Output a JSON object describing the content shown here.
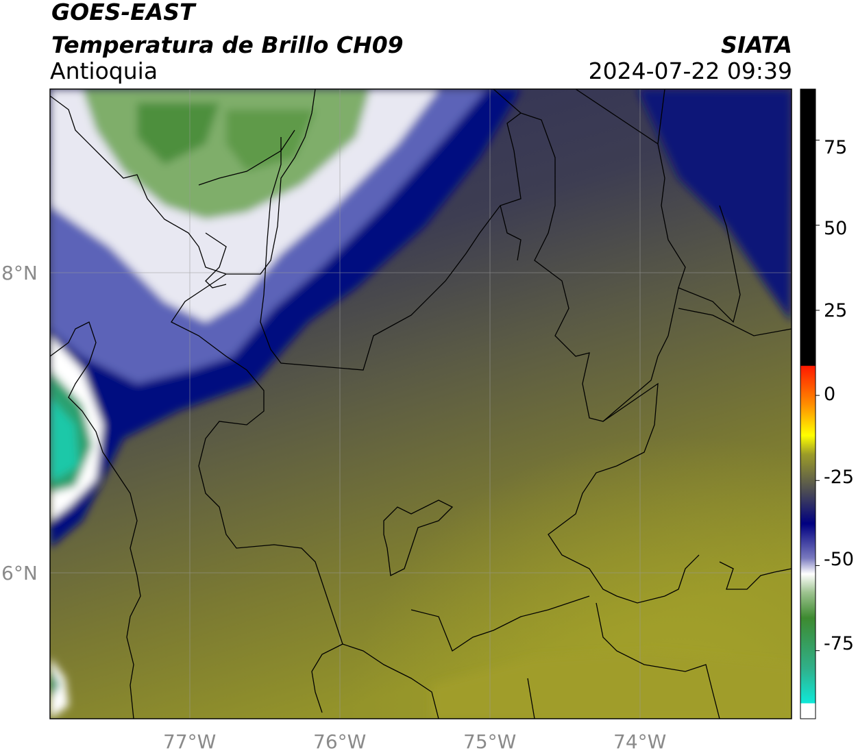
{
  "header": {
    "satellite": "GOES-EAST",
    "product": "Temperatura de Brillo CH09",
    "region": "Antioquia",
    "agency": "SIATA",
    "datetime": "2024-07-22 09:39"
  },
  "map": {
    "longitude_labels": [
      "77°W",
      "76°W",
      "75°W",
      "74°W"
    ],
    "latitude_labels": [
      "8°N",
      "6°N"
    ],
    "lon_range": [
      -77.95,
      -73.0
    ],
    "lat_range": [
      5.05,
      9.25
    ]
  },
  "colorbar": {
    "tick_labels": [
      "75",
      "50",
      "25",
      "0",
      "-25",
      "-50",
      "-75"
    ],
    "tick_values": [
      75,
      50,
      25,
      0,
      -25,
      -50,
      -75
    ],
    "range": [
      -95,
      90
    ],
    "colors": {
      "black_above": "#000000",
      "red": "#ff1a00",
      "orange": "#ff8c00",
      "yellow": "#ffff00",
      "olive": "#9c9c28",
      "gray": "#4a4a55",
      "navy": "#000080",
      "white": "#ffffff",
      "green": "#4f9a3e",
      "cyan": "#10e8d8"
    }
  }
}
